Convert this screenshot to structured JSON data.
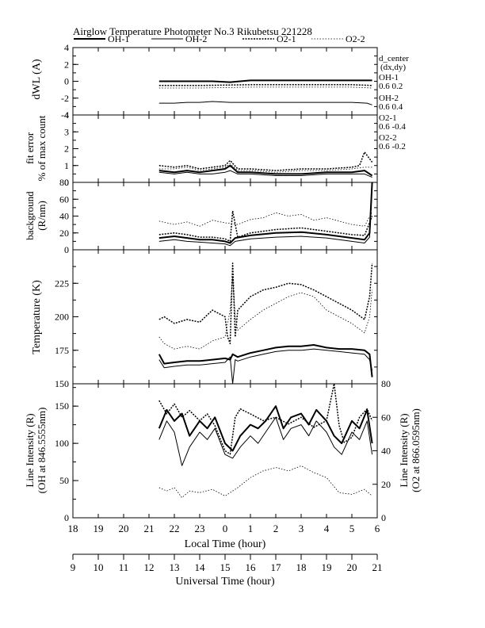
{
  "header": {
    "title": "Airglow Temperature Photometer No.3  Rikubetsu    221228"
  },
  "legend": [
    {
      "name": "OH-1",
      "style": "thick-solid"
    },
    {
      "name": "OH-2",
      "style": "thin-solid"
    },
    {
      "name": "O2-1",
      "style": "thick-dotted"
    },
    {
      "name": "O2-2",
      "style": "thin-dotted"
    }
  ],
  "side_info": {
    "header": [
      "d_center",
      "(dx,dy)"
    ],
    "entries": [
      {
        "name": "OH-1",
        "value": "0.6   0.2"
      },
      {
        "name": "OH-2",
        "value": "0.6   0.4"
      },
      {
        "name": "O2-1",
        "value": "0.6   -0.4"
      },
      {
        "name": "O2-2",
        "value": "0.6   -0.2"
      }
    ]
  },
  "colors": {
    "line": "#000000",
    "background": "#ffffff"
  },
  "chart_data": [
    {
      "type": "line",
      "id": "dwl",
      "ylabel": [
        "dWL (A)"
      ],
      "ylim": [
        -4,
        4
      ],
      "yticks": [
        -4,
        -2,
        0,
        2,
        4
      ],
      "xlim": [
        18,
        30
      ],
      "series": [
        {
          "name": "OH-1",
          "x": [
            21.4,
            22.5,
            23.5,
            24.2,
            25.0,
            26.0,
            27.0,
            28.0,
            29.0,
            29.8
          ],
          "y": [
            0.0,
            0.0,
            0.0,
            -0.1,
            0.1,
            0.1,
            0.1,
            0.1,
            0.1,
            0.1
          ]
        },
        {
          "name": "OH-2",
          "x": [
            21.4,
            22.0,
            22.5,
            23.0,
            23.5,
            24.2,
            25.0,
            26.0,
            27.0,
            28.0,
            29.0,
            29.6,
            29.8
          ],
          "y": [
            -2.6,
            -2.6,
            -2.5,
            -2.5,
            -2.4,
            -2.5,
            -2.5,
            -2.5,
            -2.5,
            -2.5,
            -2.5,
            -2.6,
            -2.8
          ]
        },
        {
          "name": "O2-1",
          "x": [
            21.4,
            23.0,
            25.0,
            27.0,
            29.0,
            29.8
          ],
          "y": [
            -0.5,
            -0.5,
            -0.4,
            -0.4,
            -0.4,
            -0.5
          ]
        },
        {
          "name": "O2-2",
          "x": [
            21.4,
            23.0,
            25.0,
            27.0,
            29.0,
            29.8
          ],
          "y": [
            -0.8,
            -0.8,
            -0.7,
            -0.7,
            -0.7,
            -0.8
          ]
        }
      ]
    },
    {
      "type": "line",
      "id": "fit",
      "ylabel": [
        "fit error",
        "% of max count"
      ],
      "ylim": [
        0,
        4
      ],
      "yticks": [
        0,
        1,
        2,
        3,
        4
      ],
      "xlim": [
        18,
        30
      ],
      "series": [
        {
          "name": "OH-1",
          "x": [
            21.4,
            22.0,
            22.5,
            23.0,
            23.5,
            24.0,
            24.2,
            24.5,
            25.0,
            26.0,
            27.0,
            28.0,
            29.0,
            29.5,
            29.8
          ],
          "y": [
            0.7,
            0.6,
            0.7,
            0.6,
            0.7,
            0.8,
            1.0,
            0.6,
            0.6,
            0.5,
            0.5,
            0.6,
            0.6,
            0.7,
            0.4
          ]
        },
        {
          "name": "OH-2",
          "x": [
            21.4,
            22.0,
            22.5,
            23.0,
            23.5,
            24.0,
            24.2,
            24.5,
            25.0,
            26.0,
            27.0,
            28.0,
            29.0,
            29.5,
            29.8
          ],
          "y": [
            0.6,
            0.5,
            0.6,
            0.5,
            0.5,
            0.6,
            0.7,
            0.5,
            0.5,
            0.4,
            0.4,
            0.5,
            0.5,
            0.5,
            0.3
          ]
        },
        {
          "name": "O2-1",
          "x": [
            21.4,
            22.0,
            22.5,
            23.0,
            23.5,
            24.0,
            24.2,
            24.5,
            25.0,
            26.0,
            27.0,
            28.0,
            29.0,
            29.3,
            29.5,
            29.8
          ],
          "y": [
            1.0,
            0.9,
            1.0,
            0.8,
            0.9,
            1.0,
            1.3,
            0.8,
            0.8,
            0.7,
            0.8,
            0.8,
            0.9,
            1.0,
            1.8,
            1.2
          ]
        },
        {
          "name": "O2-2",
          "x": [
            21.4,
            22.0,
            22.5,
            23.0,
            23.5,
            24.0,
            24.2,
            24.5,
            25.0,
            26.0,
            27.0,
            28.0,
            29.0,
            29.5,
            29.8
          ],
          "y": [
            0.8,
            0.8,
            0.9,
            0.7,
            0.8,
            0.9,
            1.1,
            0.7,
            0.7,
            0.6,
            0.7,
            0.7,
            0.8,
            0.9,
            0.9
          ]
        }
      ]
    },
    {
      "type": "line",
      "id": "bg",
      "ylabel": [
        "background",
        "(R/nm)"
      ],
      "ylim": [
        0,
        80
      ],
      "yticks": [
        0,
        20,
        40,
        60,
        80
      ],
      "xlim": [
        18,
        30
      ],
      "series": [
        {
          "name": "OH-1",
          "x": [
            21.4,
            22.0,
            22.5,
            23.0,
            23.5,
            24.0,
            24.2,
            24.4,
            25.0,
            26.0,
            27.0,
            28.0,
            29.0,
            29.5,
            29.7,
            29.8
          ],
          "y": [
            14,
            16,
            14,
            12,
            12,
            10,
            8,
            14,
            17,
            20,
            21,
            18,
            14,
            12,
            20,
            80
          ]
        },
        {
          "name": "OH-2",
          "x": [
            21.4,
            22.0,
            22.5,
            23.0,
            23.5,
            24.0,
            24.2,
            24.4,
            25.0,
            26.0,
            27.0,
            28.0,
            29.0,
            29.5,
            29.7,
            29.8
          ],
          "y": [
            10,
            12,
            10,
            9,
            8,
            7,
            5,
            10,
            13,
            15,
            16,
            14,
            10,
            8,
            15,
            75
          ]
        },
        {
          "name": "O2-1",
          "x": [
            21.4,
            22.0,
            22.5,
            23.0,
            23.5,
            24.0,
            24.2,
            24.3,
            24.5,
            25.0,
            26.0,
            27.0,
            28.0,
            29.0,
            29.5,
            29.8
          ],
          "y": [
            18,
            20,
            18,
            15,
            15,
            13,
            10,
            46,
            15,
            20,
            24,
            26,
            22,
            18,
            17,
            40
          ]
        },
        {
          "name": "O2-2",
          "x": [
            21.4,
            22.0,
            22.5,
            23.0,
            23.5,
            24.0,
            24.5,
            25.0,
            25.5,
            26.0,
            26.5,
            27.0,
            27.5,
            28.0,
            28.5,
            29.0,
            29.5,
            29.8
          ],
          "y": [
            34,
            30,
            33,
            28,
            35,
            32,
            30,
            36,
            38,
            44,
            40,
            42,
            35,
            38,
            34,
            30,
            28,
            45
          ]
        }
      ]
    },
    {
      "type": "line",
      "id": "temp",
      "ylabel": [
        "Temperature (K)"
      ],
      "ylim": [
        150,
        250
      ],
      "yticks": [
        150,
        175,
        200,
        225
      ],
      "xlim": [
        18,
        30
      ],
      "series": [
        {
          "name": "OH-1",
          "x": [
            21.4,
            21.6,
            22.0,
            22.5,
            23.0,
            23.5,
            24.0,
            24.2,
            24.3,
            24.5,
            25.0,
            25.5,
            26.0,
            26.5,
            27.0,
            27.5,
            28.0,
            28.5,
            29.0,
            29.5,
            29.7,
            29.8
          ],
          "y": [
            172,
            165,
            166,
            167,
            167,
            168,
            169,
            168,
            172,
            170,
            173,
            175,
            177,
            178,
            178,
            179,
            177,
            176,
            176,
            175,
            172,
            155
          ]
        },
        {
          "name": "OH-2",
          "x": [
            21.4,
            21.6,
            22.0,
            22.5,
            23.0,
            23.5,
            24.0,
            24.2,
            24.3,
            24.4,
            24.5,
            25.0,
            25.5,
            26.0,
            26.5,
            27.0,
            27.5,
            28.0,
            28.5,
            29.0,
            29.5,
            29.7,
            29.8
          ],
          "y": [
            168,
            162,
            163,
            164,
            164,
            165,
            166,
            170,
            150,
            168,
            167,
            170,
            172,
            174,
            175,
            175,
            176,
            175,
            174,
            173,
            172,
            168,
            160
          ]
        },
        {
          "name": "O2-1",
          "x": [
            21.4,
            21.6,
            22.0,
            22.5,
            23.0,
            23.5,
            24.0,
            24.1,
            24.2,
            24.3,
            24.4,
            24.5,
            25.0,
            25.5,
            26.0,
            26.5,
            27.0,
            27.5,
            28.0,
            28.5,
            29.0,
            29.5,
            29.7,
            29.8
          ],
          "y": [
            198,
            200,
            195,
            198,
            196,
            205,
            200,
            185,
            180,
            240,
            185,
            205,
            215,
            220,
            222,
            225,
            224,
            220,
            215,
            210,
            205,
            198,
            215,
            240
          ]
        },
        {
          "name": "O2-2",
          "x": [
            21.4,
            21.6,
            22.0,
            22.5,
            23.0,
            23.5,
            24.0,
            24.1,
            24.2,
            24.3,
            24.4,
            24.5,
            25.0,
            25.5,
            26.0,
            26.5,
            27.0,
            27.5,
            28.0,
            28.5,
            29.0,
            29.5,
            29.7,
            29.8
          ],
          "y": [
            185,
            180,
            176,
            178,
            176,
            182,
            185,
            195,
            205,
            230,
            200,
            190,
            198,
            205,
            210,
            215,
            218,
            215,
            205,
            200,
            195,
            188,
            200,
            220
          ]
        }
      ]
    },
    {
      "type": "line",
      "id": "int",
      "ylabel": [
        "Line Intensity (R)",
        "(OH at 846.5555nm)"
      ],
      "ylabel_right": [
        "Line Intensity (R)",
        "(O2 at 866.0595nm)"
      ],
      "ylim": [
        0,
        180
      ],
      "yticks": [
        0,
        50,
        100,
        150
      ],
      "ylim_right": [
        0,
        80
      ],
      "yticks_right": [
        0,
        20,
        40,
        60,
        80
      ],
      "xlim": [
        18,
        30
      ],
      "xticks_local": [
        "18",
        "19",
        "20",
        "21",
        "22",
        "23",
        "0",
        "1",
        "2",
        "3",
        "4",
        "5",
        "6"
      ],
      "xlabel": "Local Time (hour)",
      "xticks_ut": [
        "9",
        "10",
        "11",
        "12",
        "13",
        "14",
        "15",
        "16",
        "17",
        "18",
        "19",
        "20",
        "21"
      ],
      "xlabel_ut": "Universal Time (hour)",
      "series": [
        {
          "name": "OH-1",
          "axis": "left",
          "x": [
            21.4,
            21.7,
            22.0,
            22.3,
            22.6,
            23.0,
            23.3,
            23.6,
            24.0,
            24.3,
            24.6,
            25.0,
            25.3,
            25.6,
            26.0,
            26.3,
            26.6,
            27.0,
            27.3,
            27.6,
            28.0,
            28.3,
            28.6,
            29.0,
            29.3,
            29.6,
            29.8
          ],
          "y": [
            120,
            145,
            130,
            140,
            110,
            130,
            120,
            135,
            100,
            90,
            110,
            125,
            120,
            130,
            150,
            120,
            135,
            140,
            125,
            145,
            130,
            110,
            100,
            130,
            120,
            145,
            100
          ]
        },
        {
          "name": "OH-2",
          "axis": "left",
          "x": [
            21.4,
            21.7,
            22.0,
            22.3,
            22.6,
            23.0,
            23.3,
            23.6,
            24.0,
            24.3,
            24.6,
            25.0,
            25.3,
            25.6,
            26.0,
            26.3,
            26.6,
            27.0,
            27.3,
            27.6,
            28.0,
            28.3,
            28.6,
            29.0,
            29.3,
            29.6,
            29.8
          ],
          "y": [
            105,
            130,
            115,
            70,
            95,
            115,
            105,
            120,
            85,
            80,
            95,
            110,
            100,
            115,
            135,
            105,
            120,
            125,
            110,
            130,
            115,
            95,
            85,
            115,
            105,
            130,
            85
          ]
        },
        {
          "name": "O2-1",
          "axis": "right",
          "x": [
            21.4,
            21.7,
            22.0,
            22.3,
            22.6,
            23.0,
            23.3,
            23.6,
            24.0,
            24.2,
            24.4,
            24.6,
            25.0,
            25.5,
            26.0,
            26.5,
            27.0,
            27.5,
            28.0,
            28.3,
            28.5,
            28.7,
            29.0,
            29.3,
            29.6,
            29.8
          ],
          "y": [
            70,
            62,
            68,
            60,
            64,
            58,
            62,
            55,
            40,
            38,
            60,
            65,
            62,
            58,
            60,
            56,
            60,
            54,
            58,
            80,
            55,
            45,
            48,
            60,
            65,
            58
          ]
        },
        {
          "name": "O2-2",
          "axis": "right",
          "x": [
            21.4,
            21.7,
            22.0,
            22.3,
            22.6,
            23.0,
            23.5,
            24.0,
            24.5,
            25.0,
            25.5,
            26.0,
            26.5,
            27.0,
            27.5,
            28.0,
            28.5,
            29.0,
            29.5,
            29.8
          ],
          "y": [
            18,
            16,
            18,
            12,
            16,
            15,
            17,
            13,
            18,
            24,
            28,
            30,
            28,
            31,
            27,
            24,
            15,
            14,
            17,
            13
          ]
        }
      ]
    }
  ]
}
